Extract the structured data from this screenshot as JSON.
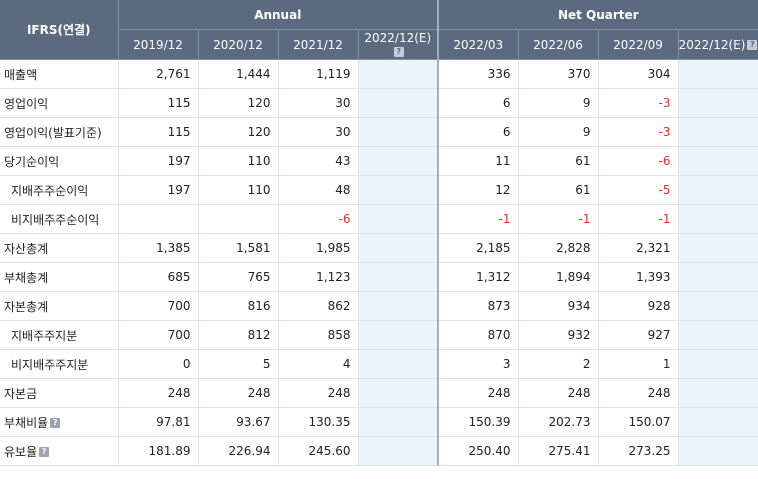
{
  "header": {
    "corner": "IFRS(연결)",
    "annual": "Annual",
    "quarter": "Net Quarter",
    "columns": [
      "2019/12",
      "2020/12",
      "2021/12",
      "2022/12(E)",
      "2022/03",
      "2022/06",
      "2022/09",
      "2022/12(E)"
    ]
  },
  "rows": [
    {
      "label": "매출액",
      "values": [
        "2,761",
        "1,444",
        "1,119",
        "",
        "336",
        "370",
        "304",
        ""
      ]
    },
    {
      "label": "영업이익",
      "values": [
        "115",
        "120",
        "30",
        "",
        "6",
        "9",
        "-3",
        ""
      ]
    },
    {
      "label": "영업이익(발표기준)",
      "values": [
        "115",
        "120",
        "30",
        "",
        "6",
        "9",
        "-3",
        ""
      ]
    },
    {
      "label": "당기순이익",
      "values": [
        "197",
        "110",
        "43",
        "",
        "11",
        "61",
        "-6",
        ""
      ]
    },
    {
      "label": "지배주주순이익",
      "values": [
        "197",
        "110",
        "48",
        "",
        "12",
        "61",
        "-5",
        ""
      ]
    },
    {
      "label": "비지배주주순이익",
      "values": [
        "",
        "",
        "-6",
        "",
        "-1",
        "-1",
        "-1",
        ""
      ]
    },
    {
      "label": "자산총계",
      "values": [
        "1,385",
        "1,581",
        "1,985",
        "",
        "2,185",
        "2,828",
        "2,321",
        ""
      ]
    },
    {
      "label": "부채총계",
      "values": [
        "685",
        "765",
        "1,123",
        "",
        "1,312",
        "1,894",
        "1,393",
        ""
      ]
    },
    {
      "label": "자본총계",
      "values": [
        "700",
        "816",
        "862",
        "",
        "873",
        "934",
        "928",
        ""
      ]
    },
    {
      "label": "지배주주지분",
      "values": [
        "700",
        "812",
        "858",
        "",
        "870",
        "932",
        "927",
        ""
      ]
    },
    {
      "label": "비지배주주지분",
      "values": [
        "0",
        "5",
        "4",
        "",
        "3",
        "2",
        "1",
        ""
      ]
    },
    {
      "label": "자본금",
      "values": [
        "248",
        "248",
        "248",
        "",
        "248",
        "248",
        "248",
        ""
      ]
    },
    {
      "label": "부채비율",
      "values": [
        "97.81",
        "93.67",
        "130.35",
        "",
        "150.39",
        "202.73",
        "150.07",
        ""
      ]
    },
    {
      "label": "유보율",
      "values": [
        "181.89",
        "226.94",
        "245.60",
        "",
        "250.40",
        "275.41",
        "273.25",
        ""
      ]
    }
  ],
  "icons": {
    "help": "question-icon"
  },
  "colors": {
    "header_bg": "#5b6a80",
    "estimate_bg": "#e9f5fa",
    "negative": "#e0312b"
  }
}
